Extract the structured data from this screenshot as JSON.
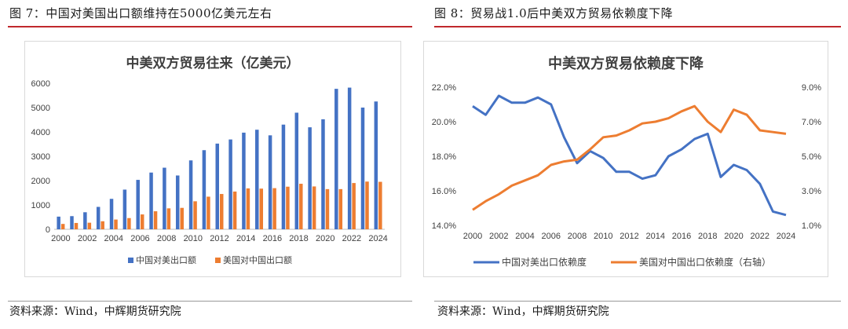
{
  "left": {
    "fig_title": "图 7：中国对美国出口额维持在5000亿美元左右",
    "source": "资料来源：Wind，中辉期货研究院"
  },
  "right": {
    "fig_title": "图 8：贸易战1.0后中美双方贸易依赖度下降",
    "source": "资料来源：Wind，中辉期货研究院"
  },
  "colors": {
    "blue": "#4472c4",
    "orange": "#ed7d31",
    "red_rule": "#c0282d"
  },
  "chart_data": [
    {
      "type": "bar",
      "title": "中美双方贸易往来（亿美元）",
      "x": [
        2000,
        2001,
        2002,
        2003,
        2004,
        2005,
        2006,
        2007,
        2008,
        2009,
        2010,
        2011,
        2012,
        2013,
        2014,
        2015,
        2016,
        2017,
        2018,
        2019,
        2020,
        2021,
        2022,
        2023,
        2024
      ],
      "xticks": [
        "2000",
        "2002",
        "2004",
        "2006",
        "2008",
        "2010",
        "2012",
        "2014",
        "2016",
        "2018",
        "2020",
        "2022",
        "2024"
      ],
      "yticks": [
        "0",
        "1000",
        "2000",
        "3000",
        "4000",
        "5000",
        "6000"
      ],
      "ylim": [
        0,
        6000
      ],
      "legend_position": "bottom",
      "series": [
        {
          "name": "中国对美出口额",
          "color": "#4472c4",
          "values": [
            520,
            540,
            700,
            920,
            1250,
            1630,
            2030,
            2330,
            2530,
            2210,
            2830,
            3250,
            3520,
            3690,
            3970,
            4090,
            3860,
            4300,
            4790,
            4190,
            4520,
            5770,
            5820,
            5000,
            5250
          ]
        },
        {
          "name": "美国对中国出口额",
          "color": "#ed7d31",
          "values": [
            220,
            260,
            270,
            330,
            400,
            460,
            610,
            740,
            860,
            880,
            1150,
            1340,
            1450,
            1550,
            1680,
            1670,
            1690,
            1750,
            1870,
            1760,
            1650,
            1650,
            1900,
            1960,
            1950
          ]
        }
      ]
    },
    {
      "type": "line",
      "title": "中美双方贸易依赖度下降",
      "x": [
        2000,
        2001,
        2002,
        2003,
        2004,
        2005,
        2006,
        2007,
        2008,
        2009,
        2010,
        2011,
        2012,
        2013,
        2014,
        2015,
        2016,
        2017,
        2018,
        2019,
        2020,
        2021,
        2022,
        2023,
        2024
      ],
      "xticks": [
        "2000",
        "2002",
        "2004",
        "2006",
        "2008",
        "2010",
        "2012",
        "2014",
        "2016",
        "2018",
        "2020",
        "2022",
        "2024"
      ],
      "yticks_left": [
        "14.0%",
        "16.0%",
        "18.0%",
        "20.0%",
        "22.0%"
      ],
      "yticks_right": [
        "1.0%",
        "3.0%",
        "5.0%",
        "7.0%",
        "9.0%"
      ],
      "ylim_left": [
        14.0,
        22.0
      ],
      "ylim_right": [
        1.0,
        9.0
      ],
      "legend_position": "bottom",
      "series": [
        {
          "name": "中国对美出口依赖度",
          "axis": "left",
          "color": "#4472c4",
          "values": [
            20.9,
            20.4,
            21.5,
            21.1,
            21.1,
            21.4,
            21.0,
            19.1,
            17.6,
            18.3,
            17.9,
            17.1,
            17.1,
            16.7,
            16.9,
            18.0,
            18.4,
            19.0,
            19.3,
            16.8,
            17.5,
            17.2,
            16.4,
            14.8,
            14.6
          ]
        },
        {
          "name": "美国对中国出口依赖度（右轴）",
          "axis": "right",
          "color": "#ed7d31",
          "values": [
            1.9,
            2.4,
            2.8,
            3.3,
            3.6,
            3.9,
            4.5,
            4.7,
            4.8,
            5.4,
            6.1,
            6.2,
            6.5,
            6.9,
            7.0,
            7.2,
            7.6,
            7.9,
            7.0,
            6.4,
            7.7,
            7.4,
            6.5,
            6.4,
            6.3
          ]
        }
      ]
    }
  ]
}
